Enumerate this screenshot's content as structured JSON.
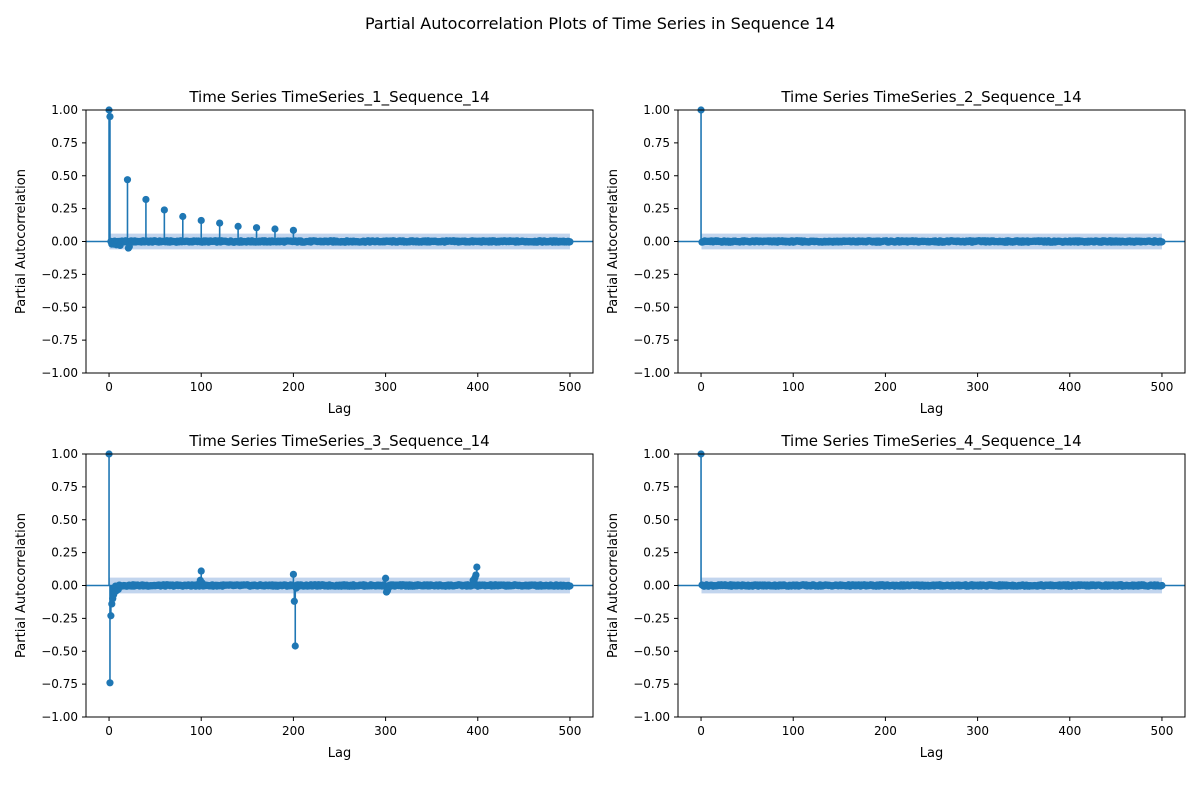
{
  "figure": {
    "suptitle": "Partial Autocorrelation Plots of Time Series in Sequence 14"
  },
  "colors": {
    "stem": "#1f77b4",
    "confidence_band": "#aec7e8",
    "axis": "#000000",
    "background": "#ffffff"
  },
  "chart_data": [
    {
      "type": "stem",
      "title": "Time Series TimeSeries_1_Sequence_14",
      "xlabel": "Lag",
      "ylabel": "Partial Autocorrelation",
      "xlim": [
        -25,
        525
      ],
      "ylim": [
        -1.0,
        1.0
      ],
      "xticks": [
        0,
        100,
        200,
        300,
        400,
        500
      ],
      "yticks": [
        -1.0,
        -0.75,
        -0.5,
        -0.25,
        0.0,
        0.25,
        0.5,
        0.75,
        1.0
      ],
      "ytick_labels": [
        "−1.00",
        "−0.75",
        "−0.50",
        "−0.25",
        "0.00",
        "0.25",
        "0.50",
        "0.75",
        "1.00"
      ],
      "xtick_labels": [
        "0",
        "100",
        "200",
        "300",
        "400",
        "500"
      ],
      "max_lag": 500,
      "confidence_interval": 0.06,
      "peaks": [
        [
          0,
          1.0
        ],
        [
          1,
          0.95
        ],
        [
          20,
          0.47
        ],
        [
          40,
          0.32
        ],
        [
          60,
          0.24
        ],
        [
          80,
          0.19
        ],
        [
          100,
          0.16
        ],
        [
          120,
          0.14
        ],
        [
          140,
          0.115
        ],
        [
          160,
          0.105
        ],
        [
          180,
          0.095
        ],
        [
          200,
          0.085
        ],
        [
          21,
          -0.05
        ],
        [
          22,
          -0.04
        ],
        [
          3,
          -0.02
        ],
        [
          5,
          -0.02
        ],
        [
          8,
          -0.025
        ],
        [
          12,
          -0.03
        ]
      ],
      "grid": false
    },
    {
      "type": "stem",
      "title": "Time Series TimeSeries_2_Sequence_14",
      "xlabel": "Lag",
      "ylabel": "Partial Autocorrelation",
      "xlim": [
        -25,
        525
      ],
      "ylim": [
        -1.0,
        1.0
      ],
      "xticks": [
        0,
        100,
        200,
        300,
        400,
        500
      ],
      "yticks": [
        -1.0,
        -0.75,
        -0.5,
        -0.25,
        0.0,
        0.25,
        0.5,
        0.75,
        1.0
      ],
      "ytick_labels": [
        "−1.00",
        "−0.75",
        "−0.50",
        "−0.25",
        "0.00",
        "0.25",
        "0.50",
        "0.75",
        "1.00"
      ],
      "xtick_labels": [
        "0",
        "100",
        "200",
        "300",
        "400",
        "500"
      ],
      "max_lag": 500,
      "confidence_interval": 0.06,
      "peaks": [
        [
          0,
          1.0
        ]
      ],
      "grid": false
    },
    {
      "type": "stem",
      "title": "Time Series TimeSeries_3_Sequence_14",
      "xlabel": "Lag",
      "ylabel": "Partial Autocorrelation",
      "xlim": [
        -25,
        525
      ],
      "ylim": [
        -1.0,
        1.0
      ],
      "xticks": [
        0,
        100,
        200,
        300,
        400,
        500
      ],
      "yticks": [
        -1.0,
        -0.75,
        -0.5,
        -0.25,
        0.0,
        0.25,
        0.5,
        0.75,
        1.0
      ],
      "ytick_labels": [
        "−1.00",
        "−0.75",
        "−0.50",
        "−0.25",
        "0.00",
        "0.25",
        "0.50",
        "0.75",
        "1.00"
      ],
      "xtick_labels": [
        "0",
        "100",
        "200",
        "300",
        "400",
        "500"
      ],
      "max_lag": 500,
      "confidence_interval": 0.06,
      "peaks": [
        [
          0,
          1.0
        ],
        [
          1,
          -0.74
        ],
        [
          2,
          -0.23
        ],
        [
          3,
          -0.14
        ],
        [
          4,
          -0.1
        ],
        [
          5,
          -0.07
        ],
        [
          6,
          -0.05
        ],
        [
          8,
          -0.04
        ],
        [
          10,
          -0.03
        ],
        [
          100,
          0.11
        ],
        [
          99,
          0.04
        ],
        [
          101,
          0.02
        ],
        [
          200,
          0.085
        ],
        [
          201,
          -0.12
        ],
        [
          202,
          -0.46
        ],
        [
          203,
          -0.02
        ],
        [
          300,
          0.055
        ],
        [
          301,
          -0.05
        ],
        [
          302,
          -0.04
        ],
        [
          303,
          -0.02
        ],
        [
          395,
          0.04
        ],
        [
          397,
          0.06
        ],
        [
          398,
          0.08
        ],
        [
          399,
          0.14
        ]
      ],
      "grid": false
    },
    {
      "type": "stem",
      "title": "Time Series TimeSeries_4_Sequence_14",
      "xlabel": "Lag",
      "ylabel": "Partial Autocorrelation",
      "xlim": [
        -25,
        525
      ],
      "ylim": [
        -1.0,
        1.0
      ],
      "xticks": [
        0,
        100,
        200,
        300,
        400,
        500
      ],
      "yticks": [
        -1.0,
        -0.75,
        -0.5,
        -0.25,
        0.0,
        0.25,
        0.5,
        0.75,
        1.0
      ],
      "ytick_labels": [
        "−1.00",
        "−0.75",
        "−0.50",
        "−0.25",
        "0.00",
        "0.25",
        "0.50",
        "0.75",
        "1.00"
      ],
      "xtick_labels": [
        "0",
        "100",
        "200",
        "300",
        "400",
        "500"
      ],
      "max_lag": 500,
      "confidence_interval": 0.06,
      "peaks": [
        [
          0,
          1.0
        ]
      ],
      "grid": false
    }
  ]
}
